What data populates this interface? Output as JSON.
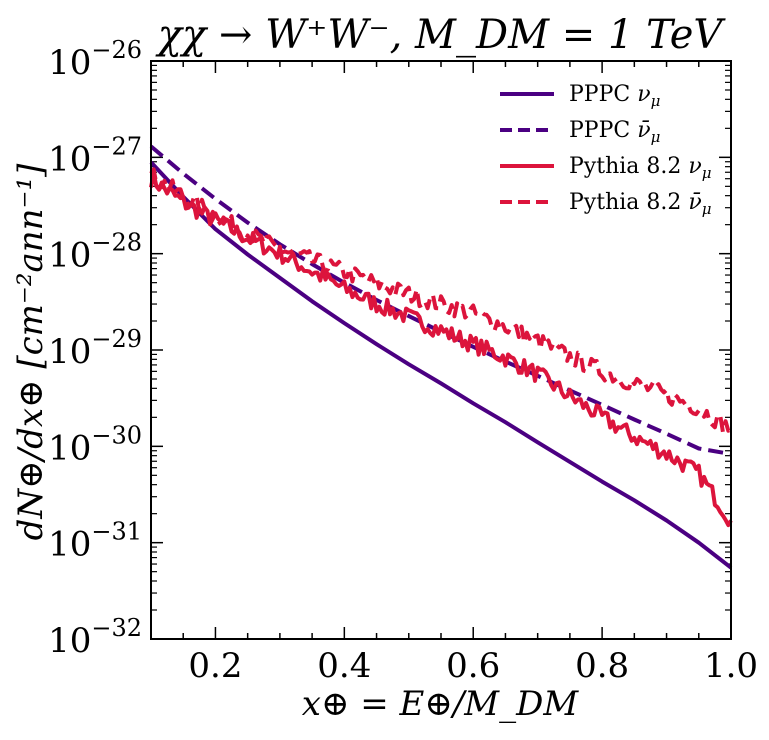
{
  "chart_data": {
    "type": "line",
    "title": "χχ → W⁺W⁻, M_DM = 1 TeV",
    "xlabel": "x⊕ = E⊕/M_DM",
    "ylabel": "dN⊕/dx⊕ [cm⁻²ann⁻¹]",
    "xlim": [
      0.1,
      1.0
    ],
    "ylim": [
      1e-32,
      1e-26
    ],
    "yscale": "log",
    "xticks": [
      0.2,
      0.4,
      0.6,
      0.8,
      1.0
    ],
    "xtick_labels": [
      "0.2",
      "0.4",
      "0.6",
      "0.8",
      "1.0"
    ],
    "yticks": [
      1e-32,
      1e-31,
      1e-30,
      1e-29,
      1e-28,
      1e-27,
      1e-26
    ],
    "ytick_exponents": [
      "−32",
      "−31",
      "−30",
      "−29",
      "−28",
      "−27",
      "−26"
    ],
    "ytick_base": "10",
    "legend_position": "top-right",
    "series": [
      {
        "name": "PPPC ν_μ",
        "label_main": "PPPC ",
        "label_sym": "ν",
        "label_sub": "μ",
        "color": "#4b0082",
        "dash": "solid",
        "x": [
          0.1,
          0.15,
          0.2,
          0.25,
          0.3,
          0.35,
          0.4,
          0.45,
          0.5,
          0.55,
          0.6,
          0.65,
          0.7,
          0.75,
          0.8,
          0.85,
          0.9,
          0.95,
          1.0
        ],
        "y": [
          8.9e-28,
          3.9e-28,
          1.8e-28,
          9.8e-29,
          5.6e-29,
          3.2e-29,
          1.9e-29,
          1.15e-29,
          7.1e-30,
          4.5e-30,
          2.8e-30,
          1.78e-30,
          1.1e-30,
          6.9e-31,
          4.3e-31,
          2.75e-31,
          1.7e-31,
          1e-31,
          5.5e-32
        ]
      },
      {
        "name": "PPPC ν̄_μ",
        "label_main": "PPPC ",
        "label_sym": "ν̄",
        "label_sub": "μ",
        "color": "#4b0082",
        "dash": "dashed",
        "x": [
          0.1,
          0.15,
          0.2,
          0.25,
          0.3,
          0.35,
          0.4,
          0.45,
          0.5,
          0.55,
          0.6,
          0.65,
          0.7,
          0.75,
          0.8,
          0.85,
          0.9,
          0.95,
          1.0
        ],
        "y": [
          1.3e-27,
          6.8e-28,
          3.7e-28,
          2.1e-28,
          1.25e-28,
          7.8e-29,
          5e-29,
          3.3e-29,
          2.25e-29,
          1.55e-29,
          1.08e-29,
          7.6e-30,
          5.4e-30,
          3.8e-30,
          2.7e-30,
          1.9e-30,
          1.35e-30,
          9.5e-31,
          8.3e-31
        ]
      },
      {
        "name": "Pythia 8.2 ν_μ",
        "label_main": "Pythia 8.2 ",
        "label_sym": "ν",
        "label_sub": "μ",
        "color": "#dc143c",
        "dash": "solid",
        "noise": 0.09,
        "x": [
          0.1,
          0.15,
          0.2,
          0.25,
          0.3,
          0.35,
          0.4,
          0.45,
          0.5,
          0.55,
          0.6,
          0.65,
          0.7,
          0.75,
          0.8,
          0.85,
          0.9,
          0.95,
          1.0
        ],
        "y": [
          6e-28,
          3.4e-28,
          2.2e-28,
          1.45e-28,
          1e-28,
          6.5e-29,
          4.3e-29,
          3e-29,
          2.2e-29,
          1.6e-29,
          1.15e-29,
          8.3e-30,
          5.6e-30,
          3.3e-30,
          2e-30,
          1.25e-30,
          8.4e-31,
          5.2e-31,
          1.7e-31
        ]
      },
      {
        "name": "Pythia 8.2 ν̄_μ",
        "label_main": "Pythia 8.2 ",
        "label_sym": "ν̄",
        "label_sub": "μ",
        "color": "#dc143c",
        "dash": "dashed",
        "noise": 0.09,
        "x": [
          0.1,
          0.15,
          0.2,
          0.25,
          0.3,
          0.35,
          0.4,
          0.45,
          0.5,
          0.55,
          0.6,
          0.65,
          0.7,
          0.75,
          0.8,
          0.85,
          0.9,
          0.95,
          1.0
        ],
        "y": [
          6.5e-28,
          4e-28,
          2.5e-28,
          1.6e-28,
          1.1e-28,
          8.5e-29,
          6.5e-29,
          4.9e-29,
          3.8e-29,
          3e-29,
          2.4e-29,
          1.75e-29,
          1.25e-29,
          8.5e-30,
          6e-30,
          4.5e-30,
          3.4e-30,
          2.5e-30,
          1.5e-30
        ]
      }
    ]
  }
}
